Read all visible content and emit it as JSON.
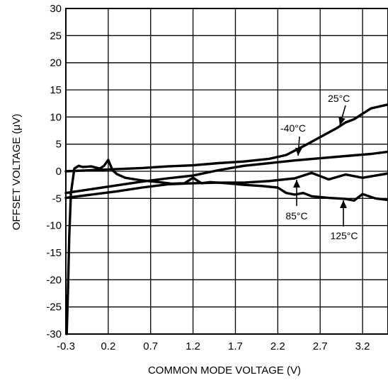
{
  "chart_data": {
    "type": "line",
    "title": "",
    "xlabel": "COMMON MODE VOLTAGE (V)",
    "ylabel": "OFFSET VOLTAGE (μV)",
    "xlim": [
      -0.3,
      3.5
    ],
    "ylim": [
      -30,
      30
    ],
    "grid": true,
    "x_ticks": [
      -0.3,
      0.2,
      0.7,
      1.2,
      1.7,
      2.2,
      2.7,
      3.2
    ],
    "x_tick_labels": [
      "-0.3",
      "0.2",
      "0.7",
      "1.2",
      "1.7",
      "2.2",
      "2.7",
      "3.2"
    ],
    "y_ticks": [
      -30,
      -25,
      -20,
      -15,
      -10,
      -5,
      0,
      5,
      10,
      15,
      20,
      25,
      30
    ],
    "y_tick_labels": [
      "-30",
      "-25",
      "-20",
      "-15",
      "-10",
      "-5",
      "0",
      "5",
      "10",
      "15",
      "20",
      "25",
      "30"
    ],
    "series": [
      {
        "name": "25°C",
        "x": [
          -0.3,
          0.0,
          0.3,
          0.6,
          0.9,
          1.2,
          1.5,
          1.8,
          2.1,
          2.3,
          2.5,
          2.7,
          2.9,
          3.0,
          3.1,
          3.2,
          3.3,
          3.5
        ],
        "y": [
          0.0,
          0.2,
          0.4,
          0.6,
          0.9,
          1.1,
          1.5,
          1.8,
          2.3,
          3.0,
          4.6,
          6.3,
          8.0,
          9.0,
          9.6,
          10.6,
          11.6,
          12.3
        ]
      },
      {
        "name": "-40°C",
        "x": [
          -0.3,
          0.0,
          0.3,
          0.6,
          0.9,
          1.2,
          1.5,
          1.8,
          2.1,
          2.4,
          2.7,
          3.0,
          3.3,
          3.5
        ],
        "y": [
          -4.0,
          -3.3,
          -2.6,
          -1.9,
          -1.3,
          -0.8,
          0.2,
          1.0,
          1.5,
          2.0,
          2.4,
          2.8,
          3.2,
          3.6
        ]
      },
      {
        "name": "85°C",
        "x": [
          -0.3,
          0.0,
          0.3,
          0.6,
          0.9,
          1.2,
          1.5,
          1.8,
          2.1,
          2.4,
          2.6,
          2.8,
          3.0,
          3.2,
          3.5
        ],
        "y": [
          -4.9,
          -4.3,
          -3.7,
          -3.0,
          -2.4,
          -2.2,
          -2.1,
          -2.1,
          -1.8,
          -1.3,
          -0.3,
          -1.5,
          -0.6,
          -1.2,
          -0.4
        ]
      },
      {
        "name": "125°C",
        "x": [
          -0.29,
          -0.275,
          -0.26,
          -0.24,
          -0.2,
          -0.15,
          -0.1,
          0.0,
          0.1,
          0.15,
          0.2,
          0.25,
          0.3,
          0.4,
          0.6,
          0.8,
          0.95,
          1.1,
          1.2,
          1.3,
          1.4,
          1.6,
          1.8,
          2.0,
          2.2,
          2.3,
          2.4,
          2.5,
          2.6,
          2.8,
          3.0,
          3.1,
          3.2,
          3.35,
          3.5
        ],
        "y": [
          -30.0,
          -22.0,
          -12.0,
          -4.0,
          0.5,
          1.0,
          0.8,
          0.9,
          0.5,
          1.0,
          2.1,
          0.2,
          -0.5,
          -1.2,
          -1.7,
          -2.0,
          -2.3,
          -2.2,
          -1.2,
          -2.2,
          -2.0,
          -2.2,
          -2.5,
          -2.7,
          -3.0,
          -4.0,
          -4.3,
          -4.0,
          -4.6,
          -4.9,
          -5.1,
          -5.4,
          -4.2,
          -5.0,
          -5.3
        ]
      }
    ],
    "annotations": [
      {
        "text": "25°C",
        "series": "25°C"
      },
      {
        "text": "-40°C",
        "series": "-40°C"
      },
      {
        "text": "85°C",
        "series": "85°C"
      },
      {
        "text": "125°C",
        "series": "125°C"
      }
    ],
    "line_color": "#000000",
    "grid_color": "#000000"
  }
}
